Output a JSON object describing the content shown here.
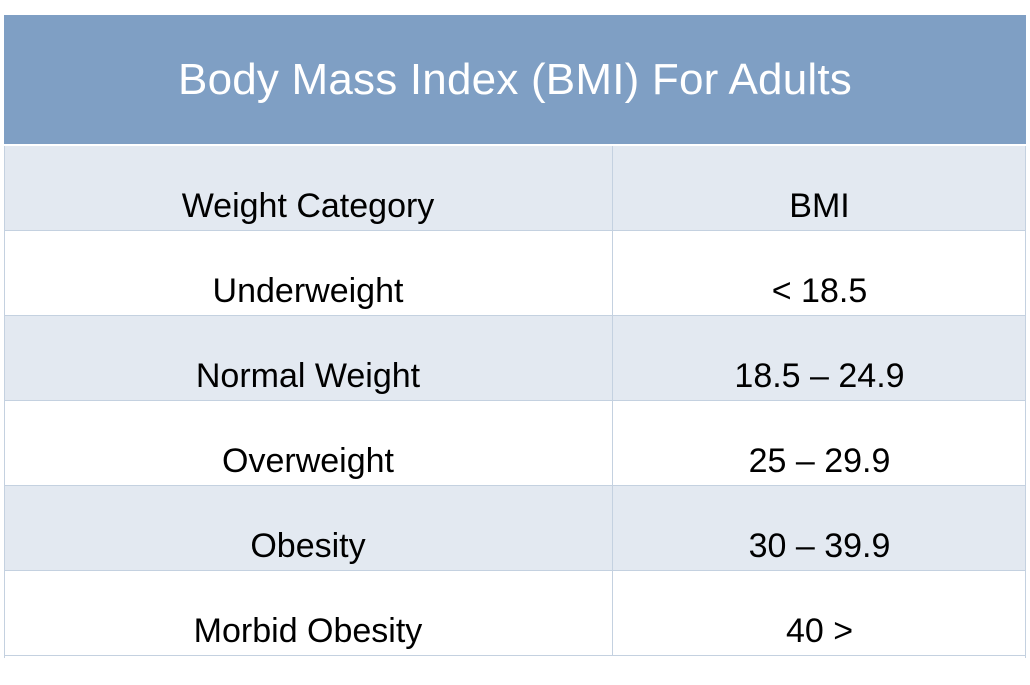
{
  "title": "Body Mass Index (BMI) For Adults",
  "header": {
    "col1": "Weight Category",
    "col2": "BMI"
  },
  "rows": [
    {
      "category": "Underweight",
      "bmi": "< 18.5"
    },
    {
      "category": "Normal Weight",
      "bmi": "18.5 – 24.9"
    },
    {
      "category": "Overweight",
      "bmi": "25 – 29.9"
    },
    {
      "category": "Obesity",
      "bmi": "30 – 39.9"
    },
    {
      "category": "Morbid Obesity",
      "bmi": "40 >"
    }
  ],
  "colors": {
    "title_background": "#7f9fc4",
    "shaded_row": "#e3e9f1",
    "grid_line": "#c4d1e0"
  }
}
